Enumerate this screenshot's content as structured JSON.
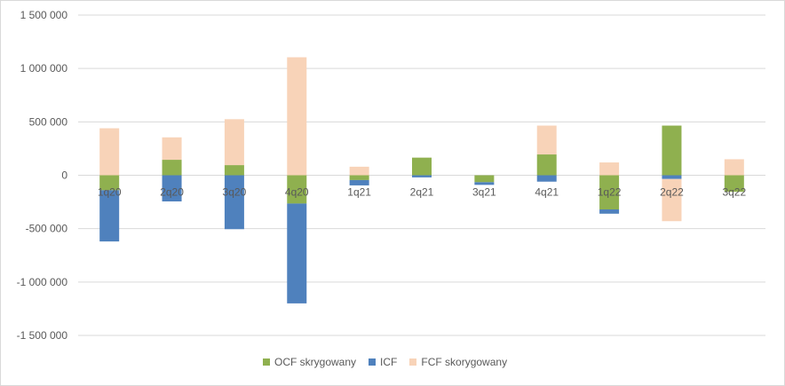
{
  "chart_data": {
    "type": "bar",
    "stacked": true,
    "categories": [
      "1q20",
      "2q20",
      "3q20",
      "4q20",
      "1q21",
      "2q21",
      "3q21",
      "4q21",
      "1q22",
      "2q22",
      "3q22"
    ],
    "series": [
      {
        "name": "OCF skrygowany",
        "color": "#8fb04f",
        "values": [
          -140000,
          145000,
          95000,
          -265000,
          -45000,
          165000,
          -65000,
          195000,
          -320000,
          465000,
          -155000
        ]
      },
      {
        "name": "ICF",
        "color": "#4f81bd",
        "values": [
          -480000,
          -245000,
          -505000,
          -935000,
          -50000,
          -20000,
          -25000,
          -60000,
          -40000,
          -35000,
          0
        ]
      },
      {
        "name": "FCF skorygowany",
        "color": "#f8d3b8",
        "values": [
          440000,
          210000,
          430000,
          1105000,
          80000,
          0,
          0,
          270000,
          120000,
          -395000,
          150000
        ]
      }
    ],
    "ylim": [
      -1500000,
      1500000
    ],
    "yticks": [
      "1 500 000",
      "1 000 000",
      "500 000",
      "0",
      "-500 000",
      "-1 000 000",
      "-1 500 000"
    ],
    "ytick_values": [
      1500000,
      1000000,
      500000,
      0,
      -500000,
      -1000000,
      -1500000
    ],
    "grid": true,
    "legend": "bottom"
  }
}
